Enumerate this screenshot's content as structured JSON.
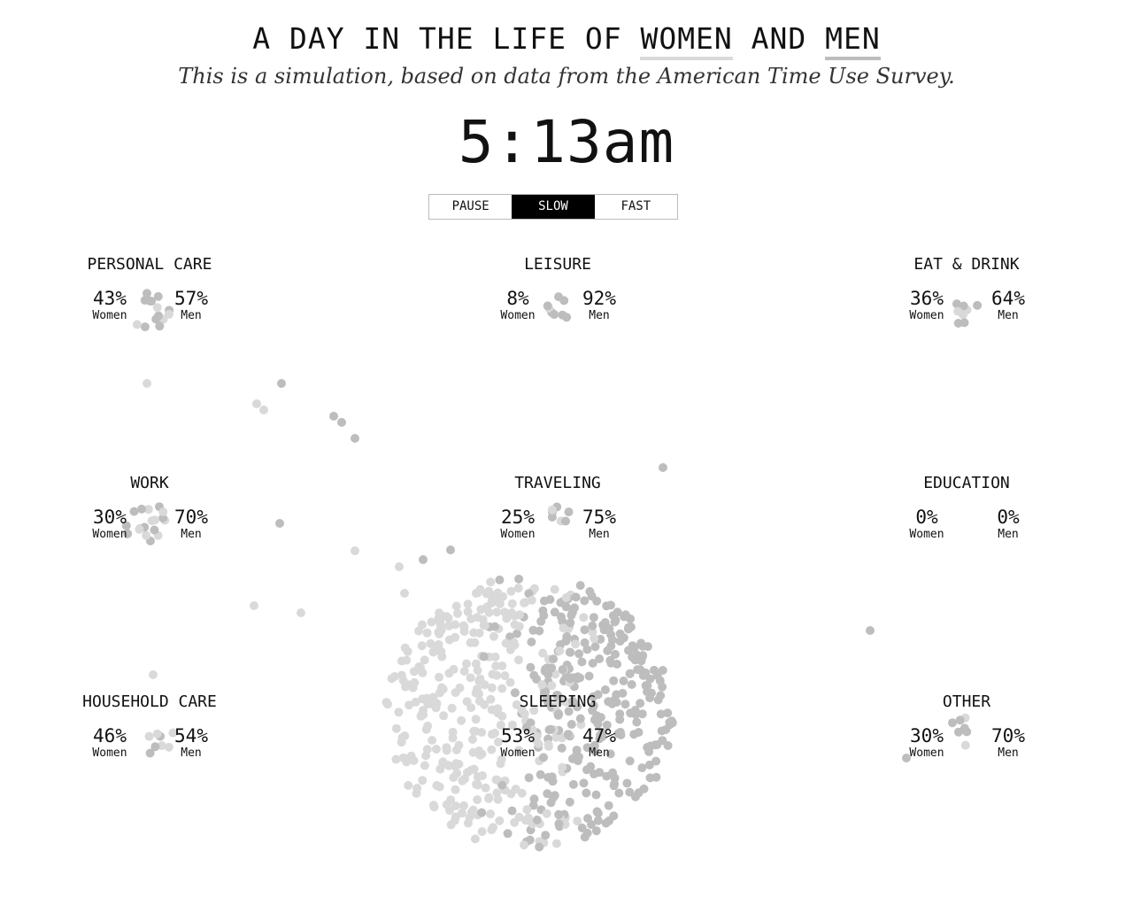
{
  "header": {
    "title_prefix": "A DAY IN THE LIFE OF",
    "women_label": "WOMEN",
    "and_word": "AND",
    "men_label": "MEN",
    "subtitle": "This is a simulation, based on data from the American Time Use Survey."
  },
  "clock": {
    "time": "5:13am"
  },
  "controls": {
    "pause": "PAUSE",
    "slow": "SLOW",
    "fast": "FAST",
    "active": "slow"
  },
  "colors": {
    "women_dot": "#d9d9d9",
    "men_dot": "#bdbdbd",
    "active_button_bg": "#000000",
    "active_button_text": "#ffffff"
  },
  "women_word": "Women",
  "men_word": "Men",
  "activities": [
    {
      "name": "PERSONAL CARE",
      "women_pct": "43%",
      "men_pct": "57%"
    },
    {
      "name": "LEISURE",
      "women_pct": "8%",
      "men_pct": "92%"
    },
    {
      "name": "EAT & DRINK",
      "women_pct": "36%",
      "men_pct": "64%"
    },
    {
      "name": "WORK",
      "women_pct": "30%",
      "men_pct": "70%"
    },
    {
      "name": "TRAVELING",
      "women_pct": "25%",
      "men_pct": "75%"
    },
    {
      "name": "EDUCATION",
      "women_pct": "0%",
      "men_pct": "0%"
    },
    {
      "name": "HOUSEHOLD CARE",
      "women_pct": "46%",
      "men_pct": "54%"
    },
    {
      "name": "SLEEPING",
      "women_pct": "53%",
      "men_pct": "47%"
    },
    {
      "name": "OTHER",
      "women_pct": "30%",
      "men_pct": "70%"
    }
  ]
}
